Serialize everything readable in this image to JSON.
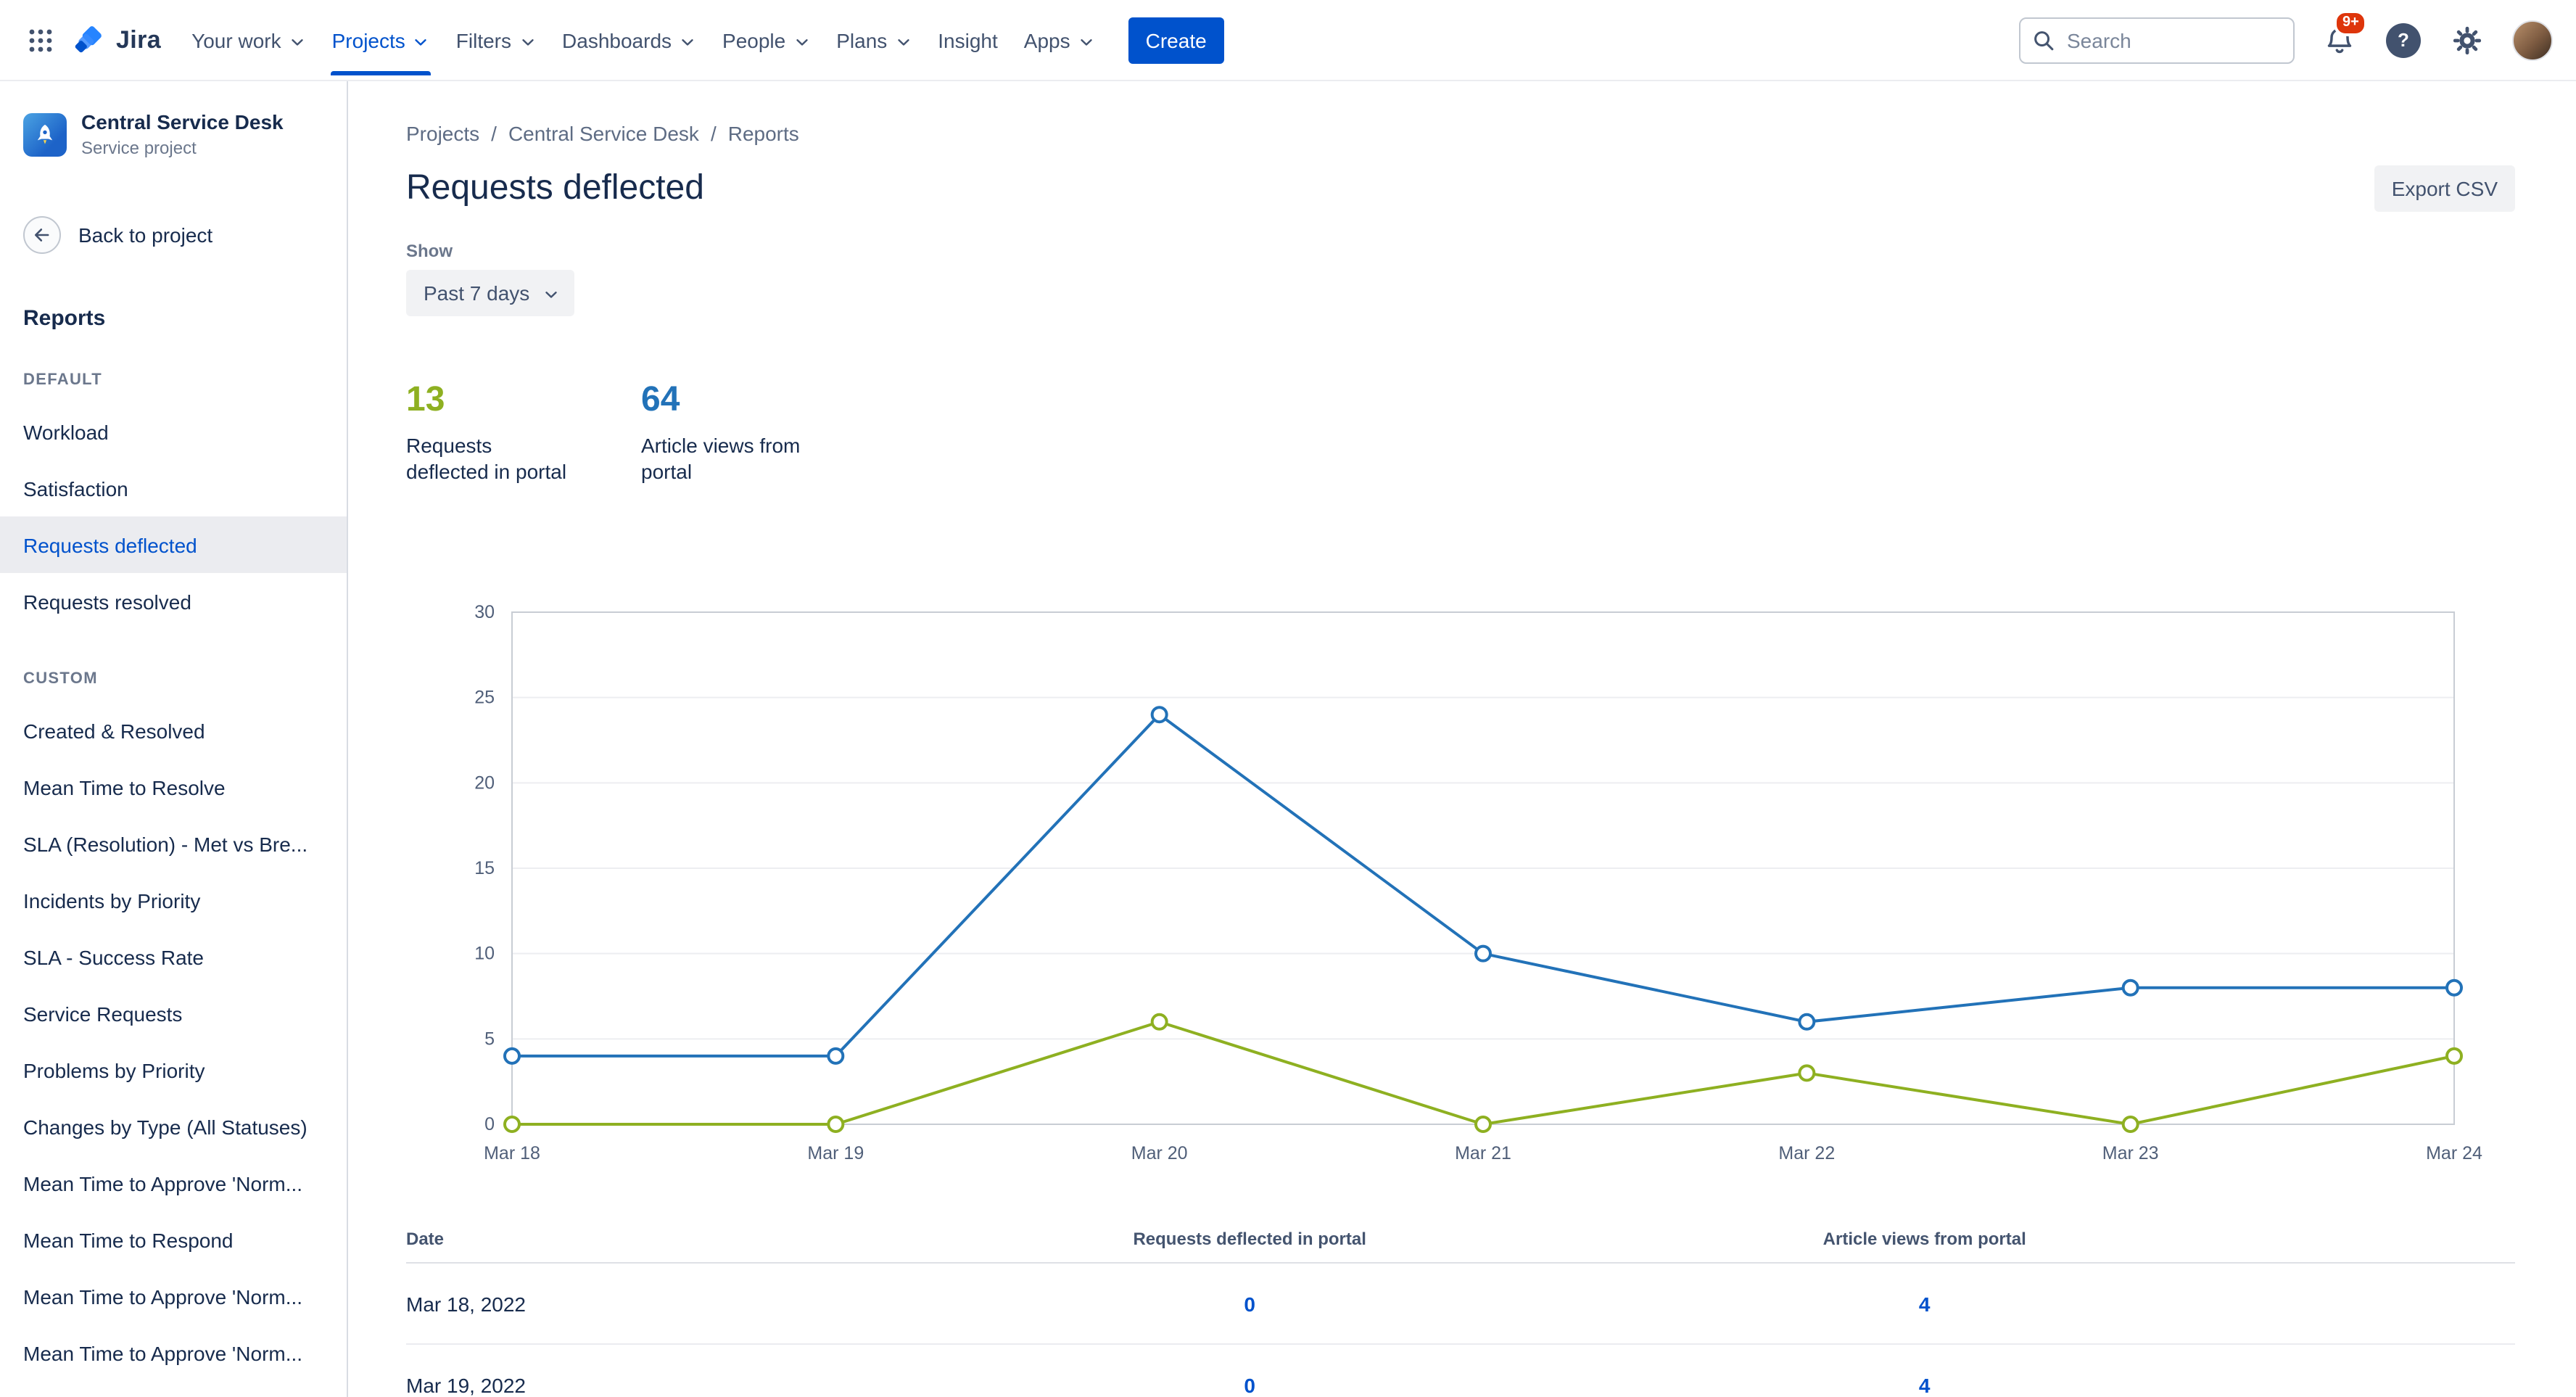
{
  "topbar": {
    "logo_text": "Jira",
    "nav": [
      {
        "label": "Your work",
        "dropdown": true,
        "active": false
      },
      {
        "label": "Projects",
        "dropdown": true,
        "active": true
      },
      {
        "label": "Filters",
        "dropdown": true,
        "active": false
      },
      {
        "label": "Dashboards",
        "dropdown": true,
        "active": false
      },
      {
        "label": "People",
        "dropdown": true,
        "active": false
      },
      {
        "label": "Plans",
        "dropdown": true,
        "active": false
      },
      {
        "label": "Insight",
        "dropdown": false,
        "active": false
      },
      {
        "label": "Apps",
        "dropdown": true,
        "active": false
      }
    ],
    "create_label": "Create",
    "search_placeholder": "Search",
    "notification_badge": "9+",
    "help_glyph": "?"
  },
  "sidebar": {
    "project_name": "Central Service Desk",
    "project_type": "Service project",
    "back_label": "Back to project",
    "heading": "Reports",
    "groups": [
      {
        "title": "DEFAULT",
        "items": [
          {
            "label": "Workload",
            "selected": false
          },
          {
            "label": "Satisfaction",
            "selected": false
          },
          {
            "label": "Requests deflected",
            "selected": true
          },
          {
            "label": "Requests resolved",
            "selected": false
          }
        ]
      },
      {
        "title": "CUSTOM",
        "items": [
          {
            "label": "Created & Resolved",
            "selected": false
          },
          {
            "label": "Mean Time to Resolve",
            "selected": false
          },
          {
            "label": "SLA (Resolution) - Met vs Bre...",
            "selected": false
          },
          {
            "label": "Incidents by Priority",
            "selected": false
          },
          {
            "label": "SLA - Success Rate",
            "selected": false
          },
          {
            "label": "Service Requests",
            "selected": false
          },
          {
            "label": "Problems by Priority",
            "selected": false
          },
          {
            "label": "Changes by Type (All Statuses)",
            "selected": false
          },
          {
            "label": "Mean Time to Approve 'Norm...",
            "selected": false
          },
          {
            "label": "Mean Time to Respond",
            "selected": false
          },
          {
            "label": "Mean Time to Approve 'Norm...",
            "selected": false
          },
          {
            "label": "Mean Time to Approve 'Norm...",
            "selected": false
          }
        ]
      }
    ]
  },
  "main": {
    "breadcrumb": [
      "Projects",
      "Central Service Desk",
      "Reports"
    ],
    "title": "Requests deflected",
    "export_label": "Export CSV",
    "show_label": "Show",
    "range_value": "Past 7 days",
    "stats": [
      {
        "value": "13",
        "label": "Requests deflected in portal",
        "color": "#8EB021"
      },
      {
        "value": "64",
        "label": "Article views from portal",
        "color": "#2272B8"
      }
    ]
  },
  "chart_data": {
    "type": "line",
    "title": "Requests deflected - past 7 days",
    "x": [
      "Mar 18",
      "Mar 19",
      "Mar 20",
      "Mar 21",
      "Mar 22",
      "Mar 23",
      "Mar 24"
    ],
    "series": [
      {
        "name": "Article views from portal",
        "color": "#2272B8",
        "values": [
          4,
          4,
          24,
          10,
          6,
          8,
          8
        ]
      },
      {
        "name": "Requests deflected in portal",
        "color": "#8EB021",
        "values": [
          0,
          0,
          6,
          0,
          3,
          0,
          4
        ]
      }
    ],
    "xlabel": "",
    "ylabel": "",
    "ylim": [
      0,
      30
    ],
    "yticks": [
      0,
      5,
      10,
      15,
      20,
      25,
      30
    ],
    "grid": true,
    "legend_position": "none",
    "marker": "open-circle"
  },
  "table": {
    "columns": [
      "Date",
      "Requests deflected in portal",
      "Article views from portal"
    ],
    "rows": [
      [
        "Mar 18, 2022",
        "0",
        "4"
      ],
      [
        "Mar 19, 2022",
        "0",
        "4"
      ]
    ]
  },
  "colors": {
    "brand": "#0052CC",
    "badge": "#DE350B",
    "chart_green": "#8EB021",
    "chart_blue": "#2272B8",
    "selected_item_bg": "#EBECF0"
  }
}
